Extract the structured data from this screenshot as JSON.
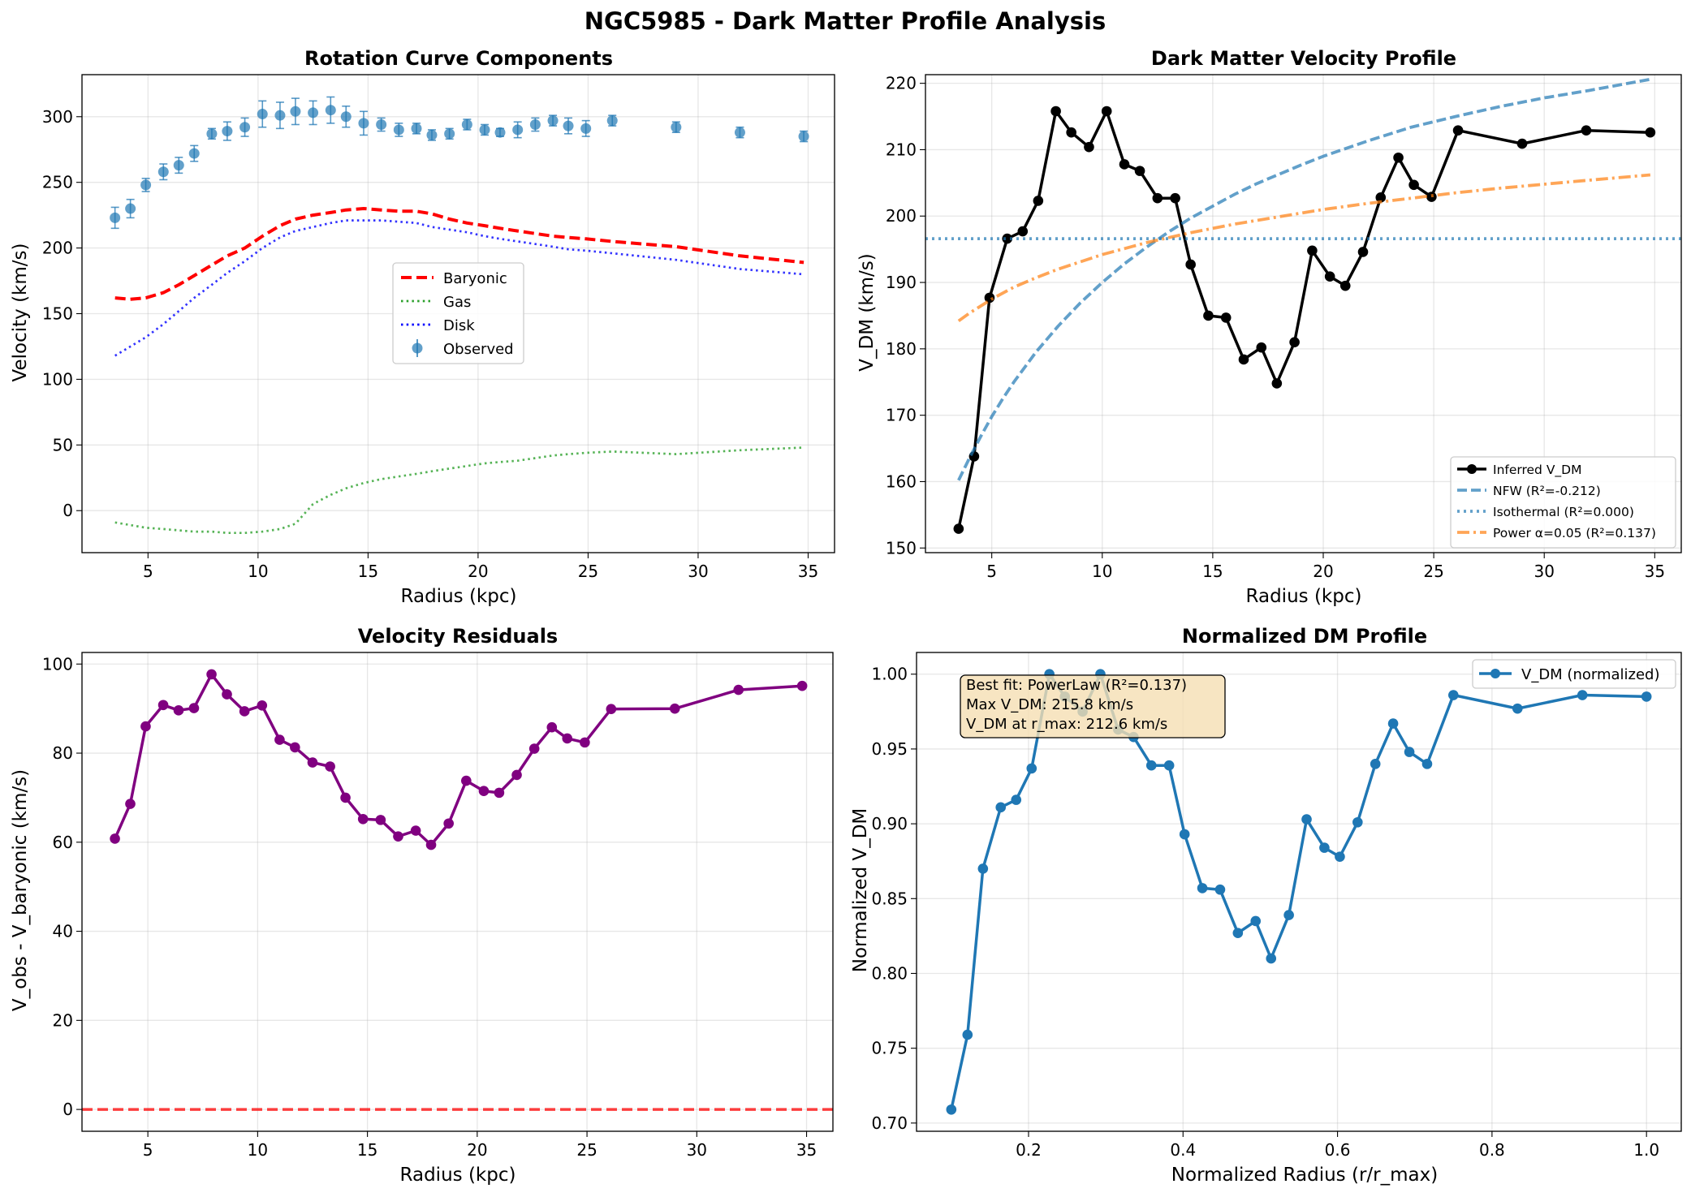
{
  "figure": {
    "suptitle": "NGC5985 - Dark Matter Profile Analysis"
  },
  "chart_data": [
    {
      "type": "line",
      "title": "Rotation Curve Components",
      "xlabel": "Radius (kpc)",
      "ylabel": "Velocity (km/s)",
      "xlim": [
        2,
        36.2
      ],
      "ylim": [
        -32,
        332
      ],
      "xticks": [
        5,
        10,
        15,
        20,
        25,
        30,
        35
      ],
      "yticks": [
        0,
        50,
        100,
        150,
        200,
        250,
        300
      ],
      "grid": true,
      "legend_position": "center-right",
      "legend": [
        "Baryonic",
        "Gas",
        "Disk",
        "Observed"
      ],
      "x": [
        3.5,
        4.2,
        4.9,
        5.7,
        6.4,
        7.1,
        7.9,
        8.6,
        9.4,
        10.2,
        11.0,
        11.7,
        12.5,
        13.3,
        14.0,
        14.8,
        15.6,
        16.4,
        17.2,
        17.9,
        18.7,
        19.5,
        20.3,
        21.0,
        21.8,
        22.6,
        23.4,
        24.1,
        24.9,
        26.1,
        29.0,
        31.9,
        34.8
      ],
      "series": [
        {
          "name": "Observed",
          "style": "errorbar",
          "color": "#1f77b4",
          "values": [
            223,
            230,
            248,
            258,
            263,
            272,
            287,
            289,
            292,
            302,
            301,
            304,
            303,
            305,
            300,
            295,
            294,
            290,
            291,
            286,
            287,
            294,
            290,
            288,
            290,
            294,
            297,
            293,
            291,
            297,
            292,
            288,
            285
          ],
          "errors": [
            8,
            7,
            5,
            6,
            6,
            6,
            4,
            7,
            7,
            10,
            10,
            10,
            9,
            10,
            8,
            9,
            5,
            5,
            4,
            4,
            4,
            4,
            4,
            3,
            6,
            5,
            4,
            6,
            6,
            4,
            4,
            4,
            4
          ]
        },
        {
          "name": "Baryonic",
          "style": "dashed",
          "color": "#ff0000",
          "values": [
            162,
            161,
            162,
            166,
            172,
            179,
            187,
            194,
            200,
            209,
            217,
            222,
            225,
            227,
            229,
            230,
            229,
            228,
            228,
            226,
            222,
            219,
            217,
            215,
            213,
            211,
            209,
            208,
            207,
            205,
            201,
            194,
            189
          ]
        },
        {
          "name": "Gas",
          "style": "dotted",
          "color": "#2ca02c",
          "values": [
            -9,
            -11,
            -13,
            -14,
            -15,
            -16,
            -16,
            -17,
            -17,
            -16,
            -14,
            -10,
            5,
            12,
            17,
            21,
            24,
            26,
            28,
            30,
            32,
            34,
            36,
            37,
            38,
            40,
            42,
            43,
            44,
            45,
            43,
            46,
            48
          ]
        },
        {
          "name": "Disk",
          "style": "dotted",
          "color": "#0000ff",
          "values": [
            118,
            125,
            132,
            142,
            152,
            162,
            172,
            181,
            190,
            200,
            208,
            213,
            216,
            219,
            221,
            221,
            221,
            220,
            219,
            216,
            214,
            212,
            209,
            207,
            205,
            203,
            201,
            199,
            198,
            196,
            191,
            184,
            180
          ]
        }
      ]
    },
    {
      "type": "line",
      "title": "Dark Matter Velocity Profile",
      "xlabel": "Radius (kpc)",
      "ylabel": "V_DM (km/s)",
      "xlim": [
        2,
        36.2
      ],
      "ylim": [
        149.3,
        221.3
      ],
      "xticks": [
        5,
        10,
        15,
        20,
        25,
        30,
        35
      ],
      "yticks": [
        150,
        160,
        170,
        180,
        190,
        200,
        210,
        220
      ],
      "grid": true,
      "legend_position": "lower-right",
      "legend": [
        "Inferred V_DM",
        "NFW (R²=-0.212)",
        "Isothermal (R²=0.000)",
        "Power α=0.05 (R²=0.137)"
      ],
      "series": [
        {
          "name": "Inferred V_DM",
          "style": "solid-markers",
          "color": "#000000",
          "x": [
            3.5,
            4.2,
            4.9,
            5.7,
            6.4,
            7.1,
            7.9,
            8.6,
            9.4,
            10.2,
            11.0,
            11.7,
            12.5,
            13.3,
            14.0,
            14.8,
            15.6,
            16.4,
            17.2,
            17.9,
            18.7,
            19.5,
            20.3,
            21.0,
            21.8,
            22.6,
            23.4,
            24.1,
            24.9,
            26.1,
            29.0,
            31.9,
            34.8
          ],
          "values": [
            152.9,
            163.8,
            187.7,
            196.6,
            197.7,
            202.3,
            215.8,
            212.6,
            210.4,
            215.8,
            207.8,
            206.8,
            202.7,
            202.7,
            192.7,
            185.0,
            184.7,
            178.4,
            180.2,
            174.8,
            181.0,
            194.8,
            190.9,
            189.5,
            194.6,
            202.8,
            208.8,
            204.7,
            202.9,
            212.9,
            210.9,
            212.9,
            212.6
          ]
        },
        {
          "name": "NFW (R²=-0.212)",
          "style": "dashed",
          "color": "#1f77b4",
          "x": [
            3.5,
            4,
            4.5,
            5,
            5.5,
            6,
            7,
            8,
            9,
            10,
            11,
            12,
            13,
            14,
            15,
            16,
            17,
            18,
            19,
            20,
            22,
            24,
            26,
            28,
            30,
            32,
            34.8
          ],
          "values": [
            160.2,
            163.6,
            166.8,
            169.8,
            172.5,
            175.0,
            179.5,
            183.4,
            186.9,
            190.0,
            192.8,
            195.3,
            197.6,
            199.7,
            201.5,
            203.3,
            204.9,
            206.3,
            207.7,
            209.0,
            211.3,
            213.4,
            215.0,
            216.5,
            217.8,
            218.9,
            220.6
          ]
        },
        {
          "name": "Isothermal (R²=0.000)",
          "style": "dotted",
          "color": "#1f77b4",
          "x": [
            2,
            36.2
          ],
          "values": [
            196.6,
            196.6
          ]
        },
        {
          "name": "Power α=0.05 (R²=0.137)",
          "style": "dashdot",
          "color": "#ff7f0e",
          "x": [
            3.5,
            4,
            5,
            6,
            7,
            8,
            10,
            12,
            14,
            16,
            18,
            20,
            22,
            24,
            26,
            28,
            30,
            32,
            34.8
          ],
          "values": [
            184.2,
            185.4,
            187.5,
            189.3,
            190.7,
            192.0,
            194.2,
            196.0,
            197.5,
            198.8,
            199.9,
            201.0,
            201.9,
            202.7,
            203.5,
            204.2,
            204.8,
            205.4,
            206.2
          ]
        }
      ]
    },
    {
      "type": "line",
      "title": "Velocity Residuals",
      "xlabel": "Radius (kpc)",
      "ylabel": "V_obs - V_baryonic (km/s)",
      "xlim": [
        2,
        36.2
      ],
      "ylim": [
        -4.9,
        102.6
      ],
      "xticks": [
        5,
        10,
        15,
        20,
        25,
        30,
        35
      ],
      "yticks": [
        0,
        20,
        40,
        60,
        80,
        100
      ],
      "grid": true,
      "reference_line": 0,
      "series": [
        {
          "style": "solid-markers",
          "color": "#800080",
          "x": [
            3.5,
            4.2,
            4.9,
            5.7,
            6.4,
            7.1,
            7.9,
            8.6,
            9.4,
            10.2,
            11.0,
            11.7,
            12.5,
            13.3,
            14.0,
            14.8,
            15.6,
            16.4,
            17.2,
            17.9,
            18.7,
            19.5,
            20.3,
            21.0,
            21.8,
            22.6,
            23.4,
            24.1,
            24.9,
            26.1,
            29.0,
            31.9,
            34.8
          ],
          "values": [
            60.8,
            68.6,
            86.0,
            90.8,
            89.6,
            90.1,
            97.7,
            93.2,
            89.4,
            90.7,
            83.0,
            81.3,
            77.9,
            77.0,
            70.0,
            65.2,
            65.0,
            61.3,
            62.6,
            59.4,
            64.2,
            73.8,
            71.5,
            71.1,
            75.1,
            81.0,
            85.8,
            83.3,
            82.4,
            89.9,
            90.0,
            94.2,
            95.1
          ]
        },
        {
          "style": "dashed",
          "color": "#ff0000",
          "x": [
            2,
            36.2
          ],
          "values": [
            0,
            0
          ]
        }
      ]
    },
    {
      "type": "line",
      "title": "Normalized DM Profile",
      "xlabel": "Normalized Radius (r/r_max)",
      "ylabel": "Normalized V_DM",
      "xlim": [
        0.055,
        1.045
      ],
      "ylim": [
        0.6945,
        1.0145
      ],
      "xticks": [
        0.2,
        0.4,
        0.6,
        0.8,
        1.0
      ],
      "yticks": [
        0.7,
        0.75,
        0.8,
        0.85,
        0.9,
        0.95,
        1.0
      ],
      "grid": true,
      "legend_position": "upper-right",
      "legend": [
        "V_DM (normalized)"
      ],
      "annotation": [
        "Best fit: PowerLaw (R²=0.137)",
        "Max V_DM: 215.8 km/s",
        "V_DM at r_max: 212.6 km/s"
      ],
      "series": [
        {
          "name": "V_DM (normalized)",
          "style": "solid-markers",
          "color": "#1f77b4",
          "x": [
            0.1,
            0.121,
            0.141,
            0.164,
            0.184,
            0.204,
            0.227,
            0.247,
            0.27,
            0.293,
            0.316,
            0.336,
            0.359,
            0.382,
            0.402,
            0.425,
            0.448,
            0.471,
            0.494,
            0.514,
            0.537,
            0.56,
            0.583,
            0.603,
            0.626,
            0.649,
            0.672,
            0.693,
            0.716,
            0.75,
            0.833,
            0.917,
            1.0
          ],
          "values": [
            0.709,
            0.759,
            0.87,
            0.911,
            0.916,
            0.937,
            1.0,
            0.985,
            0.975,
            1.0,
            0.963,
            0.958,
            0.939,
            0.939,
            0.893,
            0.857,
            0.856,
            0.827,
            0.835,
            0.81,
            0.839,
            0.903,
            0.884,
            0.878,
            0.901,
            0.94,
            0.967,
            0.948,
            0.94,
            0.986,
            0.977,
            0.986,
            0.985
          ]
        }
      ]
    }
  ]
}
